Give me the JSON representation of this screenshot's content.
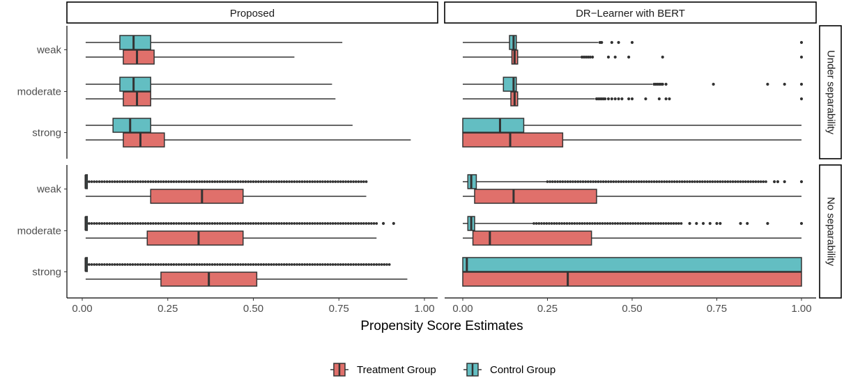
{
  "chart_data": {
    "type": "boxplot",
    "xlabel": "Propensity Score Estimates",
    "xlim": [
      0,
      1
    ],
    "xticks": [
      "0.00",
      "0.25",
      "0.50",
      "0.75",
      "1.00"
    ],
    "columns": [
      "Proposed",
      "DR−Learner with BERT"
    ],
    "rows": [
      "Under separability",
      "No separability"
    ],
    "categories": [
      "weak",
      "moderate",
      "strong"
    ],
    "legend": {
      "position": "bottom",
      "items": [
        {
          "label": "Treatment Group",
          "color": "#e0706b"
        },
        {
          "label": "Control Group",
          "color": "#63bec2"
        }
      ]
    },
    "panels": [
      {
        "column": "Proposed",
        "row": "Under separability",
        "boxes": [
          {
            "category": "weak",
            "group": "Control Group",
            "whisker_low": 0.01,
            "q1": 0.11,
            "median": 0.15,
            "q3": 0.2,
            "whisker_high": 0.76,
            "outliers": []
          },
          {
            "category": "weak",
            "group": "Treatment Group",
            "whisker_low": 0.01,
            "q1": 0.12,
            "median": 0.16,
            "q3": 0.21,
            "whisker_high": 0.62,
            "outliers": []
          },
          {
            "category": "moderate",
            "group": "Control Group",
            "whisker_low": 0.01,
            "q1": 0.11,
            "median": 0.15,
            "q3": 0.2,
            "whisker_high": 0.73,
            "outliers": []
          },
          {
            "category": "moderate",
            "group": "Treatment Group",
            "whisker_low": 0.01,
            "q1": 0.12,
            "median": 0.16,
            "q3": 0.2,
            "whisker_high": 0.74,
            "outliers": []
          },
          {
            "category": "strong",
            "group": "Control Group",
            "whisker_low": 0.01,
            "q1": 0.09,
            "median": 0.14,
            "q3": 0.2,
            "whisker_high": 0.79,
            "outliers": []
          },
          {
            "category": "strong",
            "group": "Treatment Group",
            "whisker_low": 0.01,
            "q1": 0.12,
            "median": 0.17,
            "q3": 0.24,
            "whisker_high": 0.96,
            "outliers": []
          }
        ]
      },
      {
        "column": "DR−Learner with BERT",
        "row": "Under separability",
        "boxes": [
          {
            "category": "weak",
            "group": "Control Group",
            "whisker_low": 0.0,
            "q1": 0.138,
            "median": 0.15,
            "q3": 0.158,
            "whisker_high": 0.4,
            "outliers": [
              0.405,
              0.41,
              0.44,
              0.46,
              0.5,
              1.0
            ]
          },
          {
            "category": "weak",
            "group": "Treatment Group",
            "whisker_low": 0.0,
            "q1": 0.145,
            "median": 0.153,
            "q3": 0.162,
            "whisker_high": 0.35,
            "outliers": [
              0.352,
              0.358,
              0.364,
              0.37,
              0.376,
              0.383,
              0.43,
              0.45,
              0.49,
              0.59,
              1.0
            ]
          },
          {
            "category": "moderate",
            "group": "Control Group",
            "whisker_low": 0.0,
            "q1": 0.12,
            "median": 0.15,
            "q3": 0.158,
            "whisker_high": 0.56,
            "outliers": [
              0.565,
              0.57,
              0.575,
              0.58,
              0.585,
              0.59,
              0.6,
              0.74,
              0.9,
              0.95,
              1.0
            ]
          },
          {
            "category": "moderate",
            "group": "Treatment Group",
            "whisker_low": 0.0,
            "q1": 0.142,
            "median": 0.153,
            "q3": 0.162,
            "whisker_high": 0.39,
            "outliers": [
              0.395,
              0.4,
              0.405,
              0.41,
              0.415,
              0.42,
              0.43,
              0.44,
              0.45,
              0.46,
              0.47,
              0.49,
              0.5,
              0.54,
              0.58,
              0.6,
              0.61,
              1.0
            ]
          },
          {
            "category": "strong",
            "group": "Control Group",
            "whisker_low": 0.0,
            "q1": 0.0,
            "median": 0.11,
            "q3": 0.18,
            "whisker_high": 1.0,
            "outliers": []
          },
          {
            "category": "strong",
            "group": "Treatment Group",
            "whisker_low": 0.0,
            "q1": 0.0,
            "median": 0.14,
            "q3": 0.295,
            "whisker_high": 1.0,
            "outliers": []
          }
        ]
      },
      {
        "column": "Proposed",
        "row": "No separability",
        "boxes": [
          {
            "category": "weak",
            "group": "Control Group",
            "whisker_low": 0.01,
            "q1": 0.01,
            "median": 0.01,
            "q3": 0.01,
            "whisker_high": 0.01,
            "outliers_range": [
              0.02,
              0.83
            ]
          },
          {
            "category": "weak",
            "group": "Treatment Group",
            "whisker_low": 0.01,
            "q1": 0.2,
            "median": 0.35,
            "q3": 0.47,
            "whisker_high": 0.83,
            "outliers": []
          },
          {
            "category": "moderate",
            "group": "Control Group",
            "whisker_low": 0.01,
            "q1": 0.01,
            "median": 0.01,
            "q3": 0.01,
            "whisker_high": 0.01,
            "outliers_range": [
              0.02,
              0.86
            ],
            "outliers": [
              0.88,
              0.91
            ]
          },
          {
            "category": "moderate",
            "group": "Treatment Group",
            "whisker_low": 0.01,
            "q1": 0.19,
            "median": 0.34,
            "q3": 0.47,
            "whisker_high": 0.86,
            "outliers": []
          },
          {
            "category": "strong",
            "group": "Control Group",
            "whisker_low": 0.01,
            "q1": 0.01,
            "median": 0.01,
            "q3": 0.01,
            "whisker_high": 0.01,
            "outliers_range": [
              0.02,
              0.9
            ]
          },
          {
            "category": "strong",
            "group": "Treatment Group",
            "whisker_low": 0.01,
            "q1": 0.23,
            "median": 0.37,
            "q3": 0.51,
            "whisker_high": 0.95,
            "outliers": []
          }
        ]
      },
      {
        "column": "DR−Learner with BERT",
        "row": "No separability",
        "boxes": [
          {
            "category": "weak",
            "group": "Control Group",
            "whisker_low": 0.0,
            "q1": 0.015,
            "median": 0.025,
            "q3": 0.04,
            "whisker_high": 0.25,
            "outliers_range": [
              0.25,
              0.9
            ],
            "outliers": [
              0.92,
              0.93,
              0.95,
              1.0
            ]
          },
          {
            "category": "weak",
            "group": "Treatment Group",
            "whisker_low": 0.0,
            "q1": 0.035,
            "median": 0.15,
            "q3": 0.395,
            "whisker_high": 1.0,
            "outliers": []
          },
          {
            "category": "moderate",
            "group": "Control Group",
            "whisker_low": 0.0,
            "q1": 0.015,
            "median": 0.025,
            "q3": 0.035,
            "whisker_high": 0.21,
            "outliers_range": [
              0.21,
              0.65
            ],
            "outliers": [
              0.67,
              0.69,
              0.71,
              0.73,
              0.75,
              0.76,
              0.82,
              0.84,
              0.9,
              1.0
            ]
          },
          {
            "category": "moderate",
            "group": "Treatment Group",
            "whisker_low": 0.0,
            "q1": 0.03,
            "median": 0.08,
            "q3": 0.38,
            "whisker_high": 1.0,
            "outliers": []
          },
          {
            "category": "strong",
            "group": "Control Group",
            "whisker_low": 0.0,
            "q1": 0.0,
            "median": 0.012,
            "q3": 1.0,
            "whisker_high": 1.0,
            "outliers": []
          },
          {
            "category": "strong",
            "group": "Treatment Group",
            "whisker_low": 0.0,
            "q1": 0.0,
            "median": 0.31,
            "q3": 1.0,
            "whisker_high": 1.0,
            "outliers": []
          }
        ]
      }
    ]
  }
}
